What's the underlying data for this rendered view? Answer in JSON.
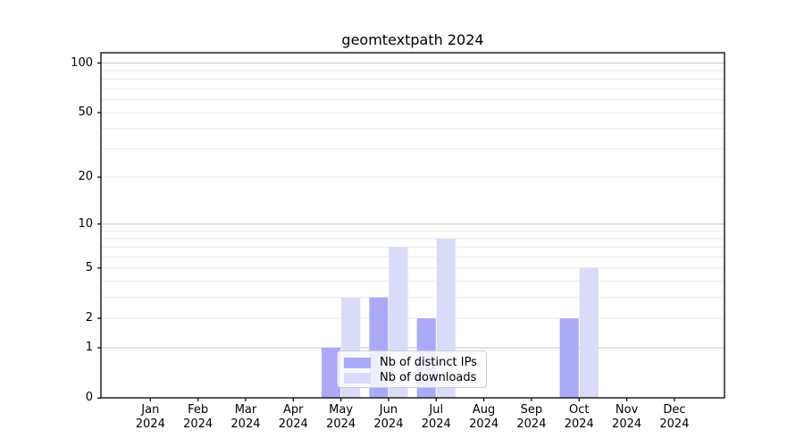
{
  "chart_data": {
    "type": "bar",
    "title": "geomtextpath 2024",
    "categories": [
      "Jan",
      "Feb",
      "Mar",
      "Apr",
      "May",
      "Jun",
      "Jul",
      "Aug",
      "Sep",
      "Oct",
      "Nov",
      "Dec"
    ],
    "x_tick_year": "2024",
    "series": [
      {
        "name": "Nb of distinct IPs",
        "color": "#aaaaf9",
        "values": [
          0,
          0,
          0,
          0,
          1,
          3,
          2,
          0,
          0,
          2,
          0,
          0
        ]
      },
      {
        "name": "Nb of downloads",
        "color": "#dadaf9",
        "values": [
          0,
          0,
          0,
          0,
          3,
          7,
          8,
          0,
          0,
          5,
          0,
          0
        ]
      }
    ],
    "y_scale": "log1p",
    "y_ticks": [
      0,
      1,
      2,
      5,
      10,
      20,
      50,
      100
    ],
    "y_minor_gridlines": [
      3,
      4,
      6,
      7,
      8,
      9,
      30,
      40,
      60,
      70,
      80,
      90
    ],
    "y_decade_gridlines": [
      1,
      10,
      100
    ],
    "ylim": [
      0,
      115
    ],
    "grid": "on",
    "legend_position": "inside-bottom-center",
    "colors": {
      "spine": "#000000",
      "decade_gridline": "#c3c3c3",
      "minor_gridline": "#e9e9e9",
      "background": "#ffffff"
    }
  }
}
